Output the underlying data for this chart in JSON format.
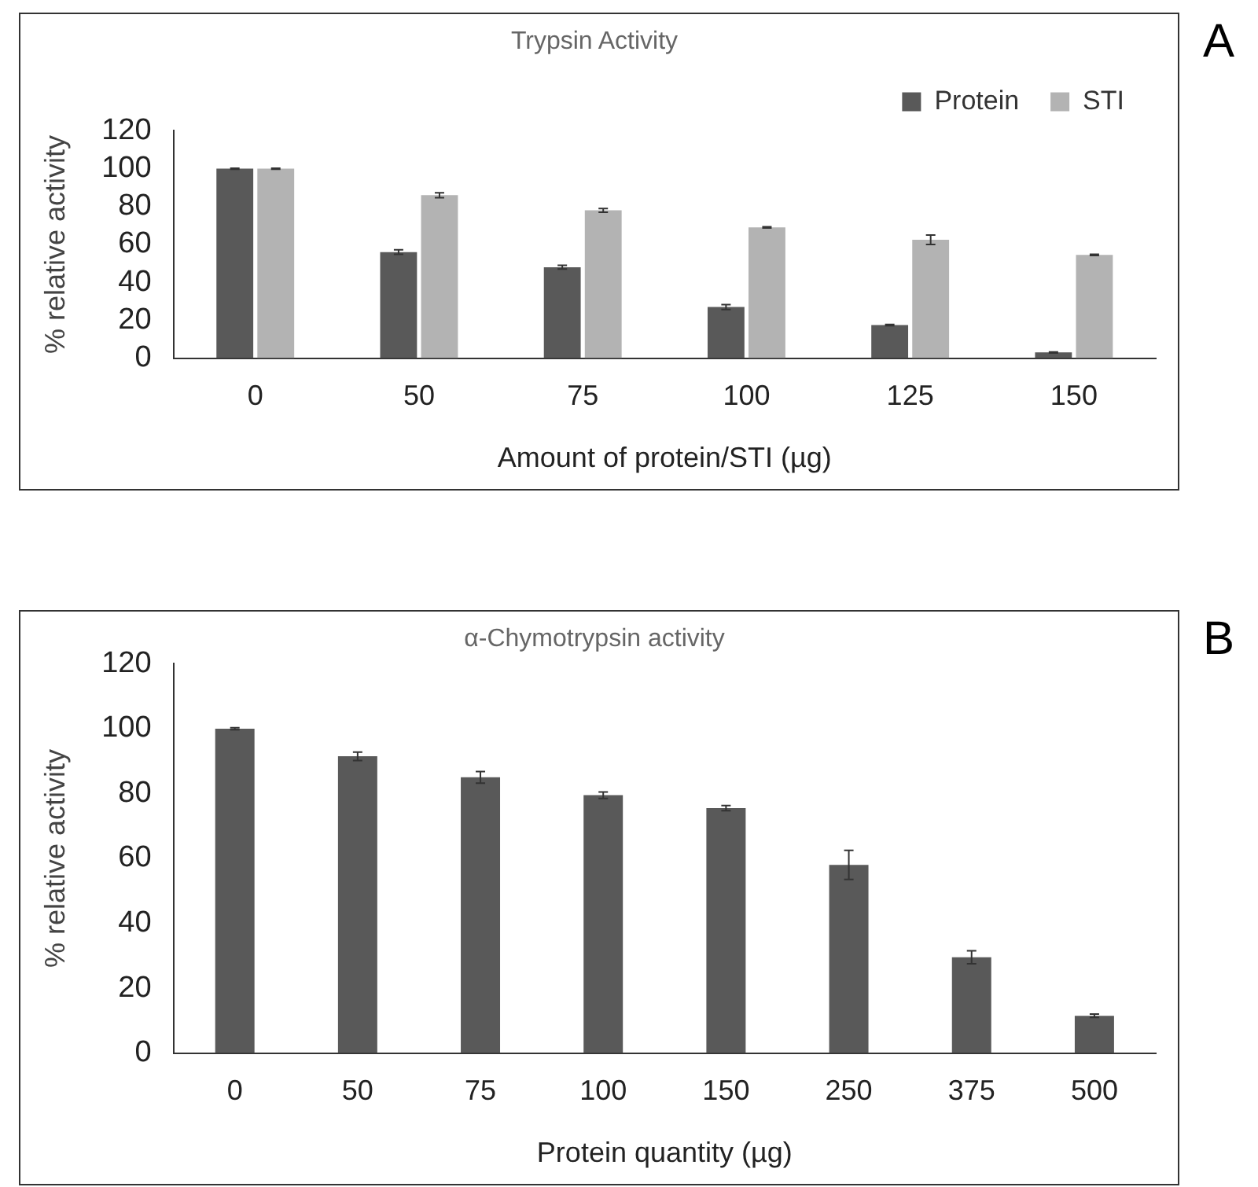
{
  "chart_data": [
    {
      "type": "bar",
      "title": "Trypsin Activity",
      "xlabel": "Amount of protein/STI (µg)",
      "ylabel": "% relative activity",
      "categories": [
        "0",
        "50",
        "75",
        "100",
        "125",
        "150"
      ],
      "series": [
        {
          "name": "Protein",
          "color": "#595959",
          "values": [
            100,
            56,
            48,
            27,
            17.5,
            3
          ],
          "errors": [
            0.3,
            1.2,
            1,
            1.3,
            0.3,
            0.3
          ]
        },
        {
          "name": "STI",
          "color": "#b3b3b3",
          "values": [
            100,
            86,
            78,
            69,
            62.5,
            54.5
          ],
          "errors": [
            0.3,
            1.3,
            1,
            0.3,
            2.5,
            0.3
          ]
        }
      ],
      "ylim": [
        0,
        120
      ],
      "yticks": [
        0,
        20,
        40,
        60,
        80,
        100,
        120
      ],
      "grid": false,
      "legend": "top right",
      "annotations": [
        "A"
      ]
    },
    {
      "type": "bar",
      "title": "α-Chymotrypsin activity",
      "xlabel": "Protein quantity (µg)",
      "ylabel": "% relative activity",
      "categories": [
        "0",
        "50",
        "75",
        "100",
        "150",
        "250",
        "375",
        "500"
      ],
      "series": [
        {
          "color": "#595959",
          "values": [
            100,
            91.5,
            85,
            79.5,
            75.5,
            58,
            29.5,
            11.5
          ],
          "errors": [
            0.3,
            1.3,
            1.8,
            1,
            0.8,
            4.5,
            2,
            0.5
          ]
        }
      ],
      "ylim": [
        0,
        120
      ],
      "yticks": [
        0,
        20,
        40,
        60,
        80,
        100,
        120
      ],
      "grid": false,
      "legend": false,
      "annotations": [
        "B"
      ]
    }
  ]
}
